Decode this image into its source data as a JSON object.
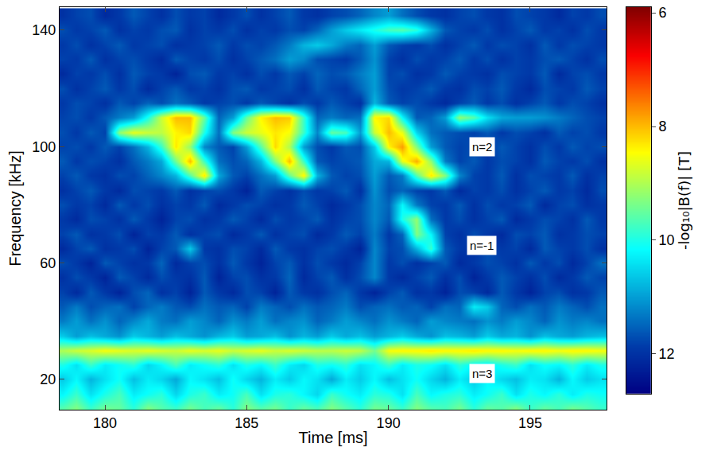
{
  "chart_data": {
    "type": "heatmap",
    "x_label": "Time [ms]",
    "y_label": "Frequency [kHz]",
    "xlim": [
      178.4,
      197.7
    ],
    "ylim": [
      9.6,
      147.9
    ],
    "xticks": [
      180,
      185,
      190,
      195
    ],
    "yticks": [
      20,
      60,
      100,
      140
    ],
    "color": "Jet",
    "colorbar": {
      "title": "-log₁₀|B(f)| [T]",
      "range": [
        5.9,
        12.7
      ],
      "ticks": [
        6,
        8,
        10,
        12
      ]
    },
    "annotations": [
      {
        "text": "n=2",
        "x": 193.3,
        "y": 100
      },
      {
        "text": "n=-1",
        "x": 193.3,
        "y": 66
      },
      {
        "text": "n=3",
        "x": 193.3,
        "y": 22
      }
    ],
    "x": [
      178.5,
      179,
      179.5,
      180,
      180.5,
      181,
      181.5,
      182,
      182.5,
      183,
      183.5,
      184,
      184.5,
      185,
      185.5,
      186,
      186.5,
      187,
      187.5,
      188,
      188.5,
      189,
      189.5,
      190,
      190.5,
      191,
      191.5,
      192,
      192.5,
      193,
      193.5,
      194,
      194.5,
      195,
      195.5,
      196,
      196.5,
      197,
      197.5
    ],
    "y": [
      10,
      15,
      20,
      25,
      30,
      35,
      40,
      45,
      50,
      55,
      60,
      65,
      70,
      75,
      80,
      85,
      90,
      95,
      100,
      105,
      110,
      115,
      120,
      125,
      130,
      135,
      140,
      145
    ],
    "values": [
      [
        9.6,
        9.3,
        9.8,
        9.4,
        9.5,
        9.9,
        9.3,
        9.6,
        9.8,
        9.4,
        9.7,
        9.5,
        9.9,
        9.3,
        9.6,
        9.4,
        9.8,
        9.5,
        9.7,
        9.3,
        9.6,
        9.9,
        9.4,
        9.5,
        9.8,
        9.3,
        9.6,
        9.7,
        9.4,
        9.9,
        9.5,
        9.6,
        9.3,
        9.8,
        9.5,
        9.7,
        9.4,
        9.6,
        9.8
      ],
      [
        10.2,
        9.8,
        10.4,
        10.0,
        9.7,
        10.3,
        10.1,
        9.9,
        10.5,
        10.0,
        9.8,
        10.3,
        10.1,
        9.7,
        10.4,
        10.0,
        9.9,
        10.2,
        10.5,
        9.8,
        10.1,
        10.3,
        9.9,
        10.0,
        10.4,
        9.7,
        10.2,
        10.0,
        9.9,
        10.3,
        10.1,
        9.8,
        10.4,
        10.0,
        10.2,
        9.9,
        10.3,
        10.0,
        10.1
      ],
      [
        10.6,
        10.2,
        10.8,
        10.4,
        10.1,
        10.7,
        10.3,
        10.5,
        10.9,
        10.2,
        10.4,
        10.7,
        10.1,
        10.5,
        10.8,
        10.3,
        10.6,
        10.2,
        10.4,
        10.9,
        10.3,
        10.6,
        10.2,
        10.7,
        10.4,
        10.1,
        10.5,
        10.8,
        10.3,
        10.6,
        10.2,
        10.5,
        10.7,
        10.3,
        10.4,
        10.8,
        10.2,
        10.6,
        10.4
      ],
      [
        10.0,
        10.4,
        9.8,
        10.3,
        10.1,
        9.9,
        10.5,
        10.2,
        9.7,
        10.3,
        10.1,
        9.9,
        10.4,
        10.0,
        10.2,
        9.8,
        10.3,
        10.5,
        10.0,
        10.1,
        9.9,
        10.4,
        10.2,
        9.8,
        10.3,
        10.0,
        10.1,
        10.4,
        9.9,
        10.2,
        10.3,
        10.0,
        9.8,
        10.4,
        10.1,
        10.2,
        9.9,
        10.3,
        10.0
      ],
      [
        9.0,
        8.8,
        8.7,
        8.5,
        8.6,
        8.7,
        8.6,
        8.7,
        8.8,
        8.6,
        8.7,
        8.6,
        8.8,
        8.7,
        8.6,
        8.8,
        8.7,
        8.8,
        8.9,
        8.9,
        8.8,
        8.9,
        9.4,
        8.5,
        8.4,
        8.4,
        8.3,
        8.4,
        8.4,
        8.3,
        8.4,
        8.4,
        8.5,
        8.4,
        8.4,
        8.5,
        8.4,
        8.4,
        8.5
      ],
      [
        10.6,
        11.0,
        10.7,
        10.9,
        11.1,
        10.6,
        10.8,
        11.0,
        10.7,
        10.9,
        11.1,
        10.8,
        10.6,
        11.0,
        10.9,
        10.7,
        11.1,
        10.8,
        11.0,
        10.6,
        10.9,
        10.7,
        11.0,
        10.8,
        10.6,
        10.9,
        11.1,
        10.7,
        10.8,
        11.0,
        10.6,
        10.9,
        10.8,
        11.1,
        10.7,
        10.9,
        11.0,
        10.8,
        10.7
      ],
      [
        11.3,
        11.0,
        11.4,
        11.1,
        11.5,
        11.2,
        10.9,
        11.3,
        11.4,
        11.0,
        11.2,
        11.5,
        11.1,
        11.3,
        11.0,
        11.4,
        11.2,
        11.1,
        11.5,
        11.3,
        11.0,
        11.2,
        11.4,
        11.1,
        11.3,
        11.5,
        11.0,
        11.2,
        11.3,
        11.4,
        11.1,
        11.3,
        11.0,
        11.2,
        11.5,
        11.1,
        11.3,
        11.2,
        11.4
      ],
      [
        11.6,
        11.3,
        11.7,
        11.5,
        11.4,
        11.8,
        11.5,
        11.3,
        11.6,
        11.7,
        11.4,
        11.6,
        11.5,
        11.8,
        11.3,
        11.5,
        11.7,
        11.4,
        11.6,
        11.5,
        11.3,
        11.7,
        11.5,
        11.4,
        11.6,
        11.5,
        11.8,
        11.4,
        11.5,
        10.3,
        10.6,
        11.5,
        11.7,
        11.4,
        11.6,
        11.3,
        11.5,
        11.7,
        11.4
      ],
      [
        11.8,
        12.1,
        11.6,
        11.9,
        12.2,
        11.7,
        11.5,
        12.0,
        11.8,
        12.2,
        11.6,
        11.9,
        12.1,
        11.7,
        11.8,
        12.2,
        11.6,
        11.9,
        12.0,
        11.7,
        11.5,
        11.9,
        12.2,
        11.8,
        11.6,
        12.0,
        11.9,
        12.2,
        11.7,
        11.8,
        12.1,
        11.6,
        11.9,
        12.2,
        11.8,
        11.7,
        12.0,
        11.9,
        11.6
      ],
      [
        12.0,
        11.7,
        11.9,
        12.2,
        11.6,
        11.8,
        12.1,
        11.7,
        11.9,
        12.0,
        11.6,
        12.2,
        11.8,
        11.7,
        12.0,
        11.9,
        11.5,
        12.1,
        11.8,
        11.6,
        12.0,
        11.7,
        11.2,
        11.9,
        12.1,
        11.8,
        11.6,
        12.0,
        11.7,
        12.2,
        11.9,
        11.6,
        11.8,
        12.0,
        11.7,
        12.1,
        11.9,
        11.6,
        11.8
      ],
      [
        11.7,
        11.9,
        12.2,
        11.6,
        11.8,
        12.0,
        11.9,
        11.5,
        12.1,
        11.8,
        11.7,
        12.0,
        11.6,
        11.9,
        12.2,
        11.8,
        11.6,
        12.0,
        11.7,
        11.9,
        12.1,
        11.8,
        11.2,
        11.9,
        11.7,
        12.0,
        11.8,
        11.6,
        12.1,
        11.9,
        11.7,
        11.8,
        12.0,
        11.6,
        11.9,
        11.7,
        12.1,
        11.8,
        11.4
      ],
      [
        12.1,
        11.8,
        11.6,
        12.0,
        11.9,
        11.7,
        12.2,
        11.8,
        11.6,
        10.6,
        11.9,
        12.0,
        11.7,
        11.8,
        12.1,
        11.6,
        11.9,
        12.0,
        11.8,
        11.7,
        11.9,
        12.2,
        11.2,
        11.8,
        11.7,
        10.8,
        9.8,
        11.6,
        11.9,
        12.0,
        11.7,
        11.9,
        11.8,
        12.1,
        11.6,
        11.8,
        11.9,
        11.7,
        12.0
      ],
      [
        11.8,
        11.6,
        12.0,
        11.9,
        11.7,
        12.2,
        11.8,
        11.9,
        11.6,
        12.0,
        11.8,
        11.7,
        12.1,
        11.9,
        11.6,
        12.0,
        11.8,
        11.7,
        12.1,
        11.9,
        11.6,
        11.8,
        11.3,
        11.9,
        11.5,
        9.3,
        10.2,
        11.8,
        12.0,
        11.7,
        11.9,
        12.1,
        11.7,
        11.8,
        11.6,
        12.0,
        11.9,
        11.7,
        11.8
      ],
      [
        11.9,
        12.1,
        11.7,
        11.8,
        12.0,
        11.6,
        11.9,
        12.2,
        11.8,
        11.7,
        12.0,
        11.9,
        11.6,
        11.8,
        12.1,
        11.7,
        11.9,
        11.8,
        11.6,
        12.0,
        11.8,
        11.7,
        11.2,
        11.6,
        10.0,
        9.2,
        11.4,
        11.9,
        11.7,
        12.0,
        11.8,
        11.6,
        12.1,
        11.9,
        11.7,
        11.8,
        12.0,
        11.6,
        11.9
      ],
      [
        11.7,
        11.9,
        11.8,
        12.1,
        11.6,
        11.9,
        11.7,
        12.0,
        11.8,
        11.9,
        11.6,
        12.1,
        11.9,
        11.7,
        11.8,
        12.0,
        11.9,
        11.6,
        11.8,
        12.1,
        11.9,
        11.7,
        11.2,
        11.5,
        10.2,
        11.3,
        11.8,
        11.9,
        11.6,
        12.0,
        11.7,
        11.9,
        11.8,
        11.6,
        12.1,
        11.8,
        11.7,
        12.0,
        11.9
      ],
      [
        12.0,
        11.8,
        11.6,
        11.9,
        12.1,
        11.7,
        11.8,
        11.9,
        11.6,
        12.0,
        11.8,
        11.7,
        11.9,
        12.2,
        11.6,
        11.8,
        12.0,
        11.7,
        11.9,
        11.8,
        11.6,
        12.0,
        11.1,
        11.7,
        11.5,
        11.8,
        11.9,
        11.6,
        12.1,
        11.8,
        11.9,
        11.7,
        12.0,
        11.8,
        11.6,
        11.9,
        11.8,
        12.1,
        11.7
      ],
      [
        11.8,
        11.6,
        11.9,
        12.0,
        11.7,
        11.8,
        11.5,
        11.2,
        10.8,
        9.6,
        8.3,
        10.9,
        11.6,
        11.8,
        11.4,
        11.0,
        9.5,
        8.4,
        10.8,
        11.6,
        11.8,
        11.7,
        11.0,
        11.6,
        11.3,
        9.6,
        8.3,
        9.3,
        11.2,
        11.8,
        11.9,
        11.6,
        12.0,
        11.7,
        11.8,
        11.9,
        11.6,
        12.0,
        11.8
      ],
      [
        11.6,
        11.9,
        11.7,
        11.8,
        12.0,
        11.6,
        11.3,
        10.9,
        9.4,
        8.0,
        9.8,
        11.4,
        11.7,
        11.5,
        10.8,
        9.3,
        8.0,
        9.8,
        11.6,
        11.8,
        11.7,
        11.6,
        10.9,
        10.8,
        8.6,
        7.9,
        9.2,
        11.3,
        11.8,
        11.6,
        11.9,
        11.7,
        11.8,
        12.0,
        11.6,
        11.8,
        11.9,
        11.7,
        12.0
      ],
      [
        11.8,
        11.7,
        11.9,
        11.6,
        11.8,
        11.4,
        10.8,
        9.8,
        8.3,
        9.2,
        11.2,
        11.6,
        11.8,
        11.0,
        9.6,
        8.2,
        9.0,
        11.0,
        11.7,
        11.9,
        11.6,
        11.7,
        10.6,
        8.4,
        7.8,
        9.3,
        11.0,
        11.6,
        11.8,
        11.7,
        11.9,
        11.6,
        11.8,
        12.0,
        11.7,
        11.9,
        11.6,
        11.8,
        11.7
      ],
      [
        11.7,
        11.9,
        11.6,
        11.8,
        9.2,
        8.6,
        8.8,
        8.9,
        8.4,
        8.2,
        10.0,
        11.4,
        9.3,
        8.8,
        8.6,
        8.3,
        8.5,
        9.8,
        11.2,
        9.5,
        9.7,
        11.0,
        8.8,
        8.0,
        8.6,
        10.5,
        11.4,
        11.6,
        11.7,
        11.8,
        11.6,
        11.9,
        11.7,
        11.8,
        12.0,
        11.6,
        11.8,
        11.7,
        11.9
      ],
      [
        11.8,
        11.7,
        11.9,
        11.6,
        11.3,
        11.0,
        10.0,
        8.8,
        8.0,
        8.0,
        9.5,
        11.5,
        11.0,
        9.5,
        8.4,
        8.0,
        8.1,
        9.8,
        11.5,
        11.3,
        11.5,
        11.4,
        8.4,
        8.2,
        10.2,
        11.6,
        11.5,
        11.0,
        9.2,
        9.6,
        10.4,
        10.9,
        11.0,
        11.0,
        11.1,
        11.3,
        11.5,
        11.7,
        11.8
      ],
      [
        11.9,
        11.7,
        11.8,
        12.0,
        11.6,
        11.8,
        11.5,
        11.7,
        11.4,
        11.6,
        11.9,
        11.8,
        11.7,
        11.9,
        11.6,
        11.8,
        12.0,
        11.7,
        11.9,
        11.6,
        11.8,
        12.0,
        10.8,
        11.6,
        11.8,
        11.7,
        11.9,
        12.1,
        11.8,
        11.6,
        11.9,
        11.7,
        12.0,
        11.8,
        11.6,
        11.9,
        11.7,
        11.8,
        12.0
      ],
      [
        11.7,
        12.0,
        11.8,
        11.6,
        11.9,
        11.7,
        12.1,
        11.8,
        11.6,
        11.9,
        11.8,
        12.0,
        11.7,
        11.6,
        11.9,
        11.8,
        11.7,
        12.0,
        11.6,
        11.8,
        11.9,
        11.5,
        11.0,
        11.7,
        11.9,
        11.8,
        11.6,
        11.9,
        12.0,
        11.7,
        11.8,
        11.6,
        11.9,
        12.1,
        11.7,
        11.8,
        11.9,
        11.6,
        11.8
      ],
      [
        12.1,
        11.8,
        11.9,
        11.7,
        12.0,
        11.6,
        11.8,
        11.9,
        12.2,
        11.7,
        11.6,
        11.9,
        11.8,
        12.0,
        11.7,
        11.9,
        11.6,
        11.8,
        11.5,
        11.7,
        11.6,
        11.3,
        11.0,
        11.8,
        11.7,
        12.0,
        11.9,
        11.6,
        11.8,
        11.9,
        12.0,
        11.7,
        11.8,
        11.9,
        11.6,
        12.1,
        11.8,
        11.7,
        11.9
      ],
      [
        11.8,
        11.9,
        11.6,
        12.0,
        11.8,
        11.7,
        11.9,
        12.1,
        11.6,
        11.8,
        11.9,
        11.7,
        12.0,
        11.8,
        11.6,
        11.4,
        11.0,
        11.2,
        11.7,
        11.8,
        11.9,
        11.6,
        11.1,
        11.8,
        12.0,
        11.7,
        11.9,
        11.8,
        11.6,
        11.9,
        11.7,
        12.0,
        11.8,
        11.9,
        11.7,
        11.6,
        11.8,
        12.0,
        11.7
      ],
      [
        11.9,
        11.7,
        12.0,
        11.8,
        11.6,
        11.9,
        11.8,
        11.7,
        12.0,
        11.9,
        11.8,
        11.6,
        11.9,
        11.7,
        11.8,
        11.6,
        11.3,
        10.8,
        10.6,
        10.9,
        11.3,
        11.5,
        11.0,
        11.6,
        11.8,
        11.9,
        11.7,
        12.0,
        11.8,
        11.6,
        11.9,
        11.7,
        11.8,
        12.0,
        11.6,
        11.9,
        11.7,
        11.8,
        11.9
      ],
      [
        11.7,
        11.9,
        11.8,
        11.6,
        12.0,
        11.8,
        11.9,
        11.7,
        11.6,
        12.0,
        11.8,
        11.9,
        11.7,
        12.0,
        11.8,
        11.9,
        11.7,
        11.8,
        11.5,
        11.0,
        10.6,
        10.3,
        10.0,
        9.7,
        9.6,
        9.9,
        10.8,
        11.6,
        11.8,
        11.9,
        11.7,
        12.0,
        11.8,
        11.6,
        11.9,
        11.8,
        12.0,
        11.7,
        11.9
      ],
      [
        12.0,
        11.8,
        11.7,
        12.1,
        11.9,
        11.6,
        11.8,
        12.0,
        11.7,
        11.9,
        11.8,
        12.1,
        11.9,
        11.7,
        12.0,
        11.8,
        11.6,
        11.9,
        12.0,
        11.8,
        11.7,
        11.5,
        11.2,
        11.0,
        11.4,
        11.7,
        11.9,
        12.0,
        11.8,
        11.7,
        11.9,
        12.0,
        11.7,
        11.8,
        11.9,
        12.1,
        11.8,
        11.9,
        11.7
      ]
    ]
  }
}
